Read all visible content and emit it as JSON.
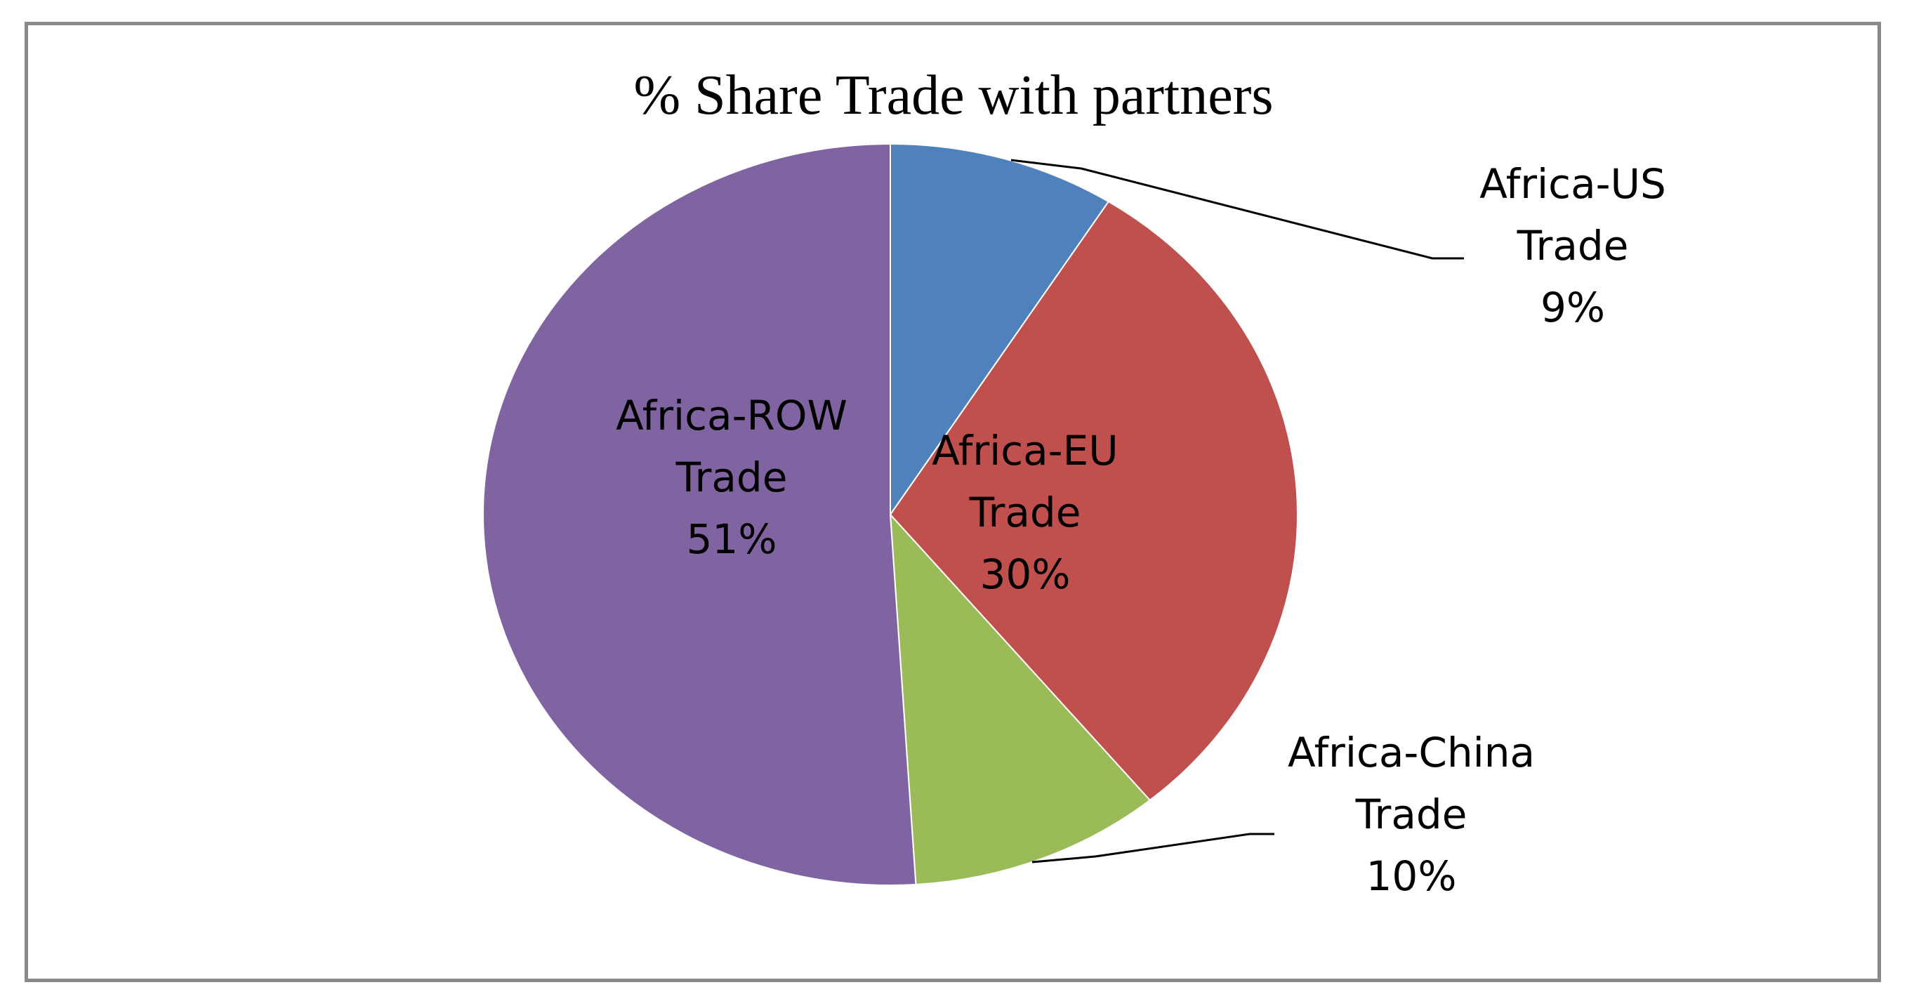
{
  "chart_data": {
    "type": "pie",
    "title": "%  Share Trade with partners",
    "slices": [
      {
        "label": [
          "Africa-US",
          "Trade",
          "9%"
        ],
        "value": 9,
        "color": "#4f81bd"
      },
      {
        "label": [
          "Africa-EU",
          "Trade",
          "30%"
        ],
        "value": 30,
        "color": "#c0504d"
      },
      {
        "label": [
          "Africa-China",
          "Trade",
          "10%"
        ],
        "value": 10,
        "color": "#9bbb59"
      },
      {
        "label": [
          "Africa-ROW",
          "Trade",
          "51%"
        ],
        "value": 51,
        "color": "#8064a2"
      }
    ],
    "start_angle_deg": 0,
    "direction": "clockwise",
    "legend": "none"
  }
}
